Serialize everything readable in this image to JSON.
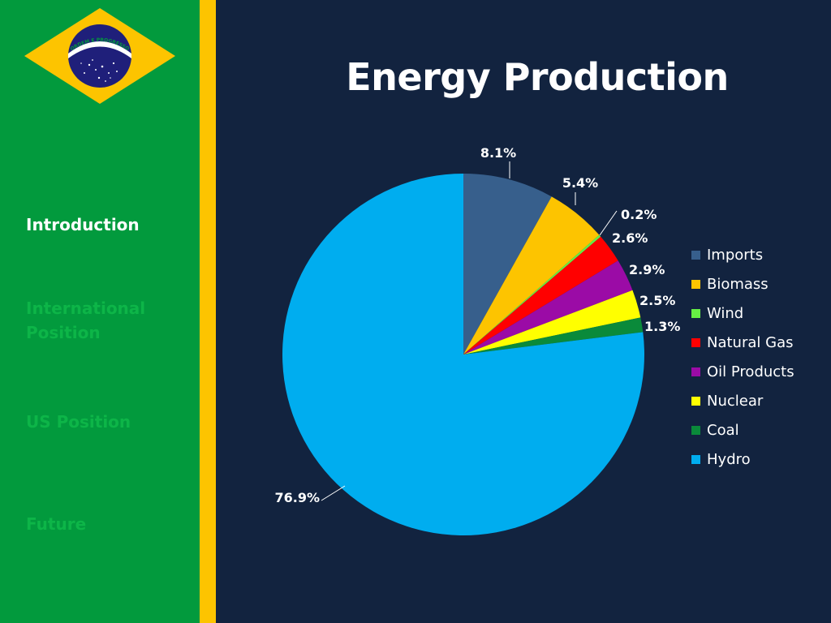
{
  "nav": {
    "items": [
      {
        "label": "Introduction",
        "active": true
      },
      {
        "label": "International Position",
        "active": false
      },
      {
        "label": "US Position",
        "active": false
      },
      {
        "label": "Future",
        "active": false
      }
    ]
  },
  "flag": {
    "motto": "ORDEM E PROGRESSO",
    "colors": {
      "green": "#029a3d",
      "yellow": "#fdc400",
      "blue": "#1f1f7a"
    }
  },
  "colors": {
    "background": "#12233f",
    "sidebar": "#029a3d",
    "stripe": "#fdc400"
  },
  "chart_data": {
    "type": "pie",
    "title": "Energy Production",
    "legend_position": "right",
    "slices": [
      {
        "label": "Imports",
        "value": 8.1,
        "display": "8.1%",
        "color": "#375f8c"
      },
      {
        "label": "Biomass",
        "value": 5.4,
        "display": "5.4%",
        "color": "#fdc400"
      },
      {
        "label": "Wind",
        "value": 0.2,
        "display": "0.2%",
        "color": "#66ee44"
      },
      {
        "label": "Natural Gas",
        "value": 2.6,
        "display": "2.6%",
        "color": "#ff0000"
      },
      {
        "label": "Oil Products",
        "value": 2.9,
        "display": "2.9%",
        "color": "#9b0ba6"
      },
      {
        "label": "Nuclear",
        "value": 2.5,
        "display": "2.5%",
        "color": "#ffff00"
      },
      {
        "label": "Coal",
        "value": 1.3,
        "display": "1.3%",
        "color": "#0a8a3a"
      },
      {
        "label": "Hydro",
        "value": 76.9,
        "display": "76.9%",
        "color": "#00adef"
      }
    ]
  }
}
